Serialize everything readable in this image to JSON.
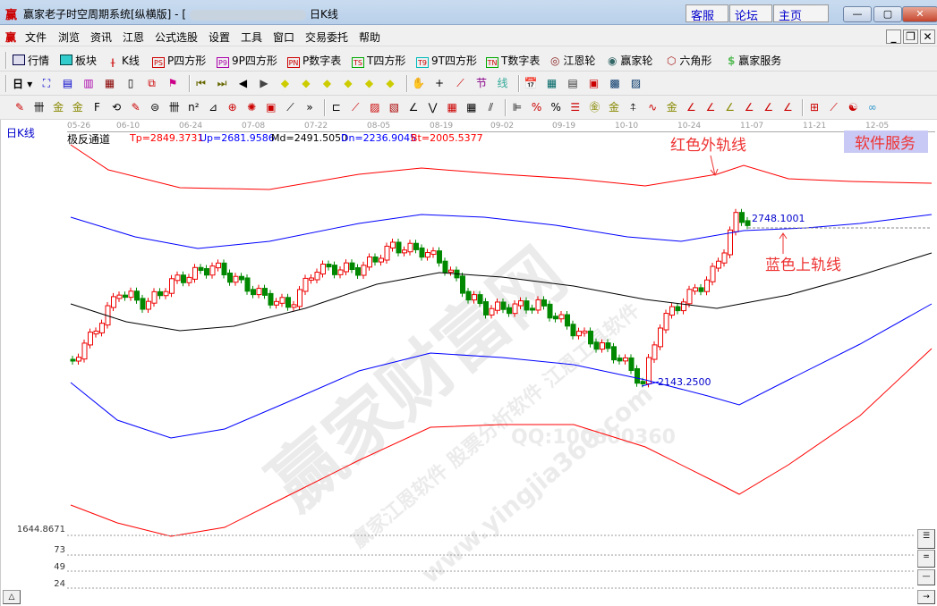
{
  "window": {
    "title": "赢家老子时空周期系统[纵横版] - [",
    "title_suffix": "日K线",
    "links": [
      "客服",
      "论坛",
      "主页"
    ],
    "controls": [
      "—",
      "▢",
      "✕"
    ]
  },
  "menu": [
    "文件",
    "浏览",
    "资讯",
    "江恩",
    "公式选股",
    "设置",
    "工具",
    "窗口",
    "交易委托",
    "帮助"
  ],
  "toolbar1": [
    {
      "label": "行情",
      "icon": "table-icon"
    },
    {
      "label": "板块",
      "icon": "blocks-icon"
    },
    {
      "label": "K线",
      "icon": "candlestick-icon"
    },
    {
      "label": "P四方形",
      "icon": "PS"
    },
    {
      "label": "9P四方形",
      "icon": "P9"
    },
    {
      "label": "P数字表",
      "icon": "PN"
    },
    {
      "label": "T四方形",
      "icon": "TS"
    },
    {
      "label": "9T四方形",
      "icon": "T9"
    },
    {
      "label": "T数字表",
      "icon": "TN"
    },
    {
      "label": "江恩轮",
      "icon": "gann-wheel-icon"
    },
    {
      "label": "赢家轮",
      "icon": "big-wheel-icon"
    },
    {
      "label": "六角形",
      "icon": "hexagon-icon"
    },
    {
      "label": "赢家服务",
      "icon": "dollar-icon"
    }
  ],
  "period": "日",
  "chart": {
    "period_label": "日K线",
    "dates": [
      "05-26",
      "06-10",
      "06-24",
      "07-08",
      "07-22",
      "08-05",
      "08-19",
      "09-02",
      "09-19",
      "10-10",
      "10-24",
      "11-07",
      "11-21",
      "12-05"
    ],
    "indicator": "极反通道",
    "params": [
      {
        "text": "Tp=2849.3731",
        "color": "#ff0000"
      },
      {
        "text": "Up=2681.9586",
        "color": "#0000ff"
      },
      {
        "text": "Md=2491.5050",
        "color": "#000000"
      },
      {
        "text": "Dn=2236.9045",
        "color": "#0000ff"
      },
      {
        "text": "Bt=2005.5377",
        "color": "#ff0000"
      }
    ],
    "high_label": "2748.1001",
    "low_label": "2143.2500",
    "annotations": {
      "red": "红色外轨线",
      "blue": "蓝色上轨线",
      "service": "软件服务"
    },
    "y_labels": [
      "1644.8671",
      "73",
      "49",
      "24"
    ],
    "watermark": [
      "赢家财富网",
      "赢家江恩软件 股票分析软件 江恩工具软件",
      "www.yingjia360.com",
      "QQ:100800360"
    ]
  }
}
